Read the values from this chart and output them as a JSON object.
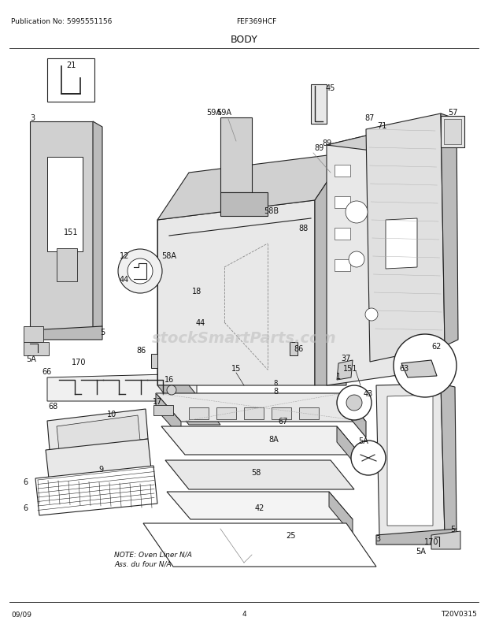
{
  "title": "BODY",
  "pub_no": "Publication No: 5995551156",
  "model": "FEF369HCF",
  "date": "09/09",
  "page": "4",
  "watermark": "stockSmartParts.com",
  "note_line1": "NOTE: Oven Liner N/A",
  "note_line2": "Ass. du four N/A",
  "version": "T20V0315",
  "bg_color": "#ffffff",
  "lc": "#222222",
  "lw": 0.7,
  "fill_light": "#e8e8e8",
  "fill_med": "#d0d0d0",
  "fill_dark": "#bbbbbb",
  "fill_white": "#ffffff",
  "hatching_color": "#cccccc"
}
